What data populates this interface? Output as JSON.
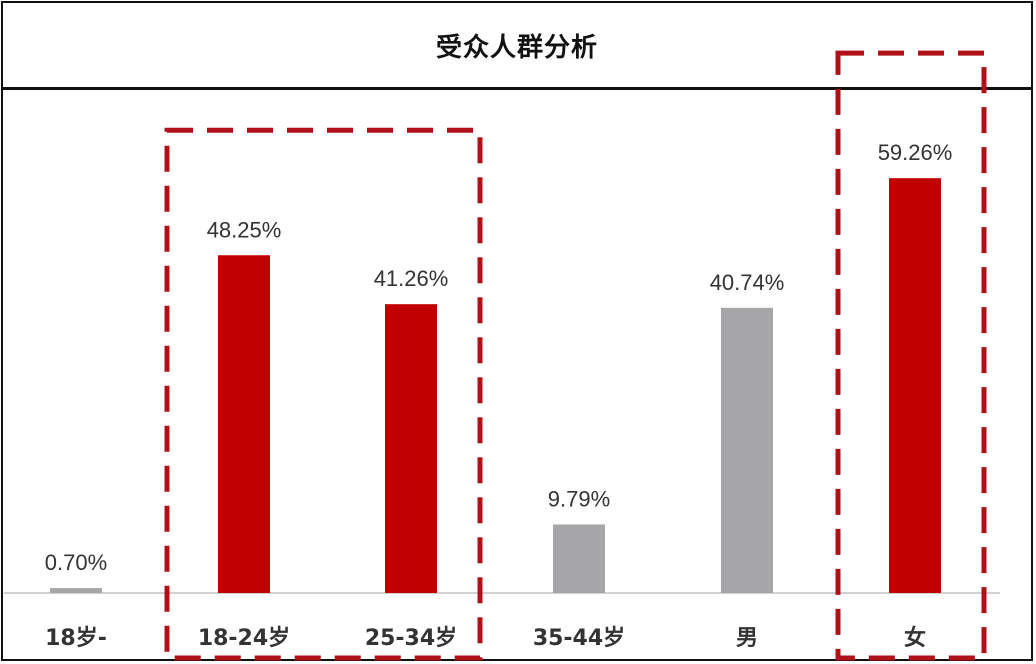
{
  "title": "受众人群分析",
  "colors": {
    "highlight": "#c00000",
    "neutral": "#a6a5a7",
    "dashed_box": "#b01018",
    "value_label": "#333333",
    "category_label": "#333333",
    "baseline": "#d0d0d0"
  },
  "chart_data": {
    "type": "bar",
    "categories": [
      "18岁-",
      "18-24岁",
      "25-34岁",
      "35-44岁",
      "男",
      "女"
    ],
    "values": [
      0.7,
      48.25,
      41.26,
      9.79,
      40.74,
      59.26
    ],
    "value_labels": [
      "0.70%",
      "48.25%",
      "41.26%",
      "9.79%",
      "40.74%",
      "59.26%"
    ],
    "highlighted": [
      false,
      true,
      true,
      false,
      false,
      true
    ],
    "title": "受众人群分析",
    "xlabel": "",
    "ylabel": "",
    "grid": false,
    "legend": "none",
    "highlight_groups": [
      {
        "categories": [
          "18-24岁",
          "25-34岁"
        ]
      },
      {
        "categories": [
          "女"
        ]
      }
    ]
  }
}
